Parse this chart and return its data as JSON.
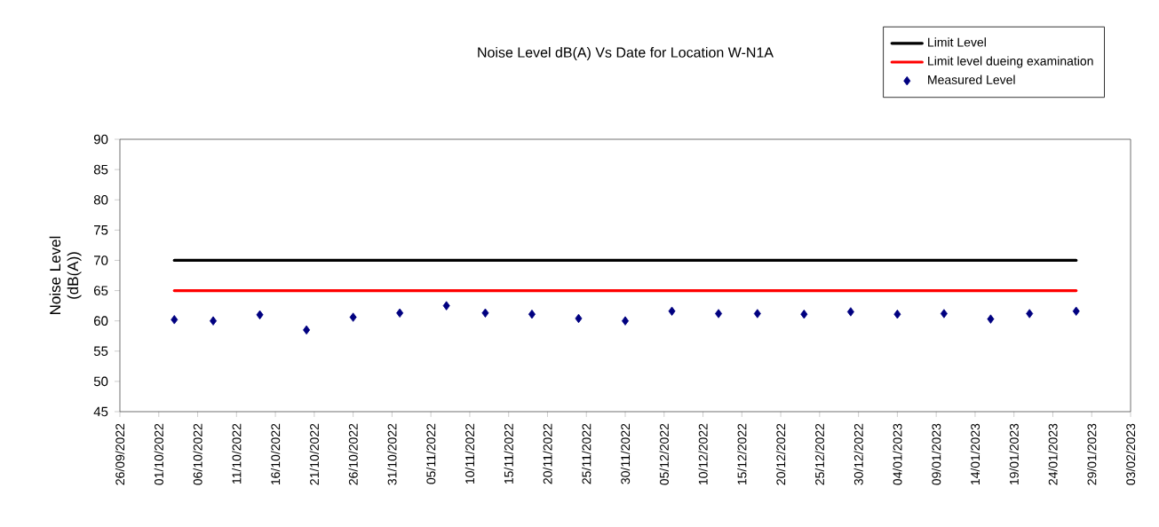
{
  "chart_data": {
    "type": "scatter",
    "title": "Noise Level dB(A) Vs Date for Location W-N1A",
    "ylabel": "Noise Level (dB(A))",
    "xlim": [
      "2022-09-26",
      "2023-02-03"
    ],
    "xticks": [
      {
        "value": "2022-09-26",
        "label": "26/09/2022"
      },
      {
        "value": "2022-10-01",
        "label": "01/10/2022"
      },
      {
        "value": "2022-10-06",
        "label": "06/10/2022"
      },
      {
        "value": "2022-10-11",
        "label": "11/10/2022"
      },
      {
        "value": "2022-10-16",
        "label": "16/10/2022"
      },
      {
        "value": "2022-10-21",
        "label": "21/10/2022"
      },
      {
        "value": "2022-10-26",
        "label": "26/10/2022"
      },
      {
        "value": "2022-10-31",
        "label": "31/10/2022"
      },
      {
        "value": "2022-11-05",
        "label": "05/11/2022"
      },
      {
        "value": "2022-11-10",
        "label": "10/11/2022"
      },
      {
        "value": "2022-11-15",
        "label": "15/11/2022"
      },
      {
        "value": "2022-11-20",
        "label": "20/11/2022"
      },
      {
        "value": "2022-11-25",
        "label": "25/11/2022"
      },
      {
        "value": "2022-11-30",
        "label": "30/11/2022"
      },
      {
        "value": "2022-12-05",
        "label": "05/12/2022"
      },
      {
        "value": "2022-12-10",
        "label": "10/12/2022"
      },
      {
        "value": "2022-12-15",
        "label": "15/12/2022"
      },
      {
        "value": "2022-12-20",
        "label": "20/12/2022"
      },
      {
        "value": "2022-12-25",
        "label": "25/12/2022"
      },
      {
        "value": "2022-12-30",
        "label": "30/12/2022"
      },
      {
        "value": "2023-01-04",
        "label": "04/01/2023"
      },
      {
        "value": "2023-01-09",
        "label": "09/01/2023"
      },
      {
        "value": "2023-01-14",
        "label": "14/01/2023"
      },
      {
        "value": "2023-01-19",
        "label": "19/01/2023"
      },
      {
        "value": "2023-01-24",
        "label": "24/01/2023"
      },
      {
        "value": "2023-01-29",
        "label": "29/01/2023"
      },
      {
        "value": "2023-02-03",
        "label": "03/02/2023"
      }
    ],
    "ylim": [
      45,
      90
    ],
    "yticks": [
      45,
      50,
      55,
      60,
      65,
      70,
      75,
      80,
      85,
      90
    ],
    "legend": "top right",
    "line_style": "solid",
    "series": [
      {
        "name": "Limit Level",
        "type": "line",
        "color": "#000000",
        "x": [
          "2022-10-03",
          "2023-01-27"
        ],
        "values": [
          70,
          70
        ]
      },
      {
        "name": "Limit level dueing examination",
        "type": "line",
        "color": "#ff0000",
        "x": [
          "2022-10-03",
          "2023-01-27"
        ],
        "values": [
          65,
          65
        ]
      },
      {
        "name": "Measured Level",
        "marker": "diamond",
        "color": "#000080",
        "x": [
          "2022-10-03",
          "2022-10-08",
          "2022-10-14",
          "2022-10-20",
          "2022-10-26",
          "2022-11-01",
          "2022-11-07",
          "2022-11-12",
          "2022-11-18",
          "2022-11-24",
          "2022-11-30",
          "2022-12-06",
          "2022-12-12",
          "2022-12-17",
          "2022-12-23",
          "2022-12-29",
          "2023-01-04",
          "2023-01-10",
          "2023-01-16",
          "2023-01-21",
          "2023-01-27"
        ],
        "values": [
          60.2,
          60.0,
          61.0,
          58.5,
          60.6,
          61.3,
          62.5,
          61.3,
          61.1,
          60.4,
          60.0,
          61.6,
          61.2,
          61.2,
          61.1,
          61.5,
          61.1,
          61.2,
          60.3,
          61.2,
          61.6
        ]
      }
    ]
  }
}
